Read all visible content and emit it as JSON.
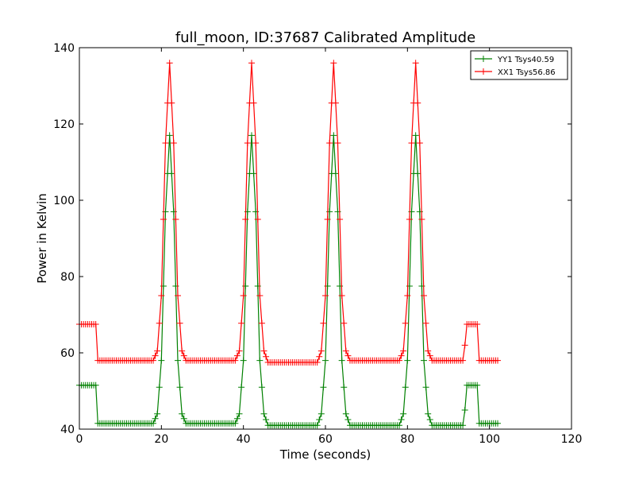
{
  "chart_data": {
    "type": "line",
    "title": "full_moon, ID:37687 Calibrated Amplitude",
    "xlabel": "Time (seconds)",
    "ylabel": "Power in Kelvin",
    "xlim": [
      0,
      120
    ],
    "ylim": [
      40,
      140
    ],
    "xticks": [
      0,
      20,
      40,
      60,
      80,
      100,
      120
    ],
    "yticks": [
      40,
      60,
      80,
      100,
      120,
      140
    ],
    "grid": false,
    "legend_position": "top-right",
    "marker": "+",
    "series": [
      {
        "name": "YY1 Tsys40.59",
        "color": "#008000",
        "x": [
          0,
          4,
          4.5,
          18,
          19,
          20,
          21,
          22,
          23,
          24,
          25,
          26,
          38,
          39,
          40,
          41,
          42,
          43,
          44,
          45,
          46,
          58,
          59,
          60,
          61,
          62,
          63,
          64,
          65,
          66,
          78,
          79,
          80,
          81,
          82,
          83,
          84,
          85,
          86,
          93.5,
          94,
          94.5,
          97,
          97.5,
          102
        ],
        "y": [
          51.5,
          51.5,
          41.5,
          41.5,
          44,
          58,
          97,
          117,
          97,
          58,
          44,
          41.5,
          41.5,
          44,
          58,
          97,
          117,
          97,
          58,
          44,
          41,
          41,
          44,
          58,
          97,
          117,
          97,
          58,
          44,
          41,
          41,
          44,
          58,
          97,
          117,
          97,
          58,
          44,
          41,
          41,
          45,
          51.5,
          51.5,
          41.5,
          41.5
        ]
      },
      {
        "name": "XX1 Tsys56.86",
        "color": "#ff0000",
        "x": [
          0,
          4,
          4.5,
          18,
          19,
          20,
          21,
          22,
          23,
          24,
          25,
          26,
          38,
          39,
          40,
          41,
          42,
          43,
          44,
          45,
          46,
          58,
          59,
          60,
          61,
          62,
          63,
          64,
          65,
          66,
          78,
          79,
          80,
          81,
          82,
          83,
          84,
          85,
          86,
          93.5,
          94,
          94.5,
          97,
          97.5,
          102
        ],
        "y": [
          67.5,
          67.5,
          58,
          58,
          60.5,
          75,
          115,
          136,
          115,
          75,
          60.5,
          58,
          58,
          60.5,
          75,
          115,
          136,
          115,
          75,
          60.5,
          57.5,
          57.5,
          60.5,
          75,
          115,
          136,
          115,
          75,
          60.5,
          58,
          58,
          60.5,
          75,
          115,
          136,
          115,
          75,
          60.5,
          58,
          58,
          62,
          67.5,
          67.5,
          58,
          58
        ]
      }
    ]
  }
}
